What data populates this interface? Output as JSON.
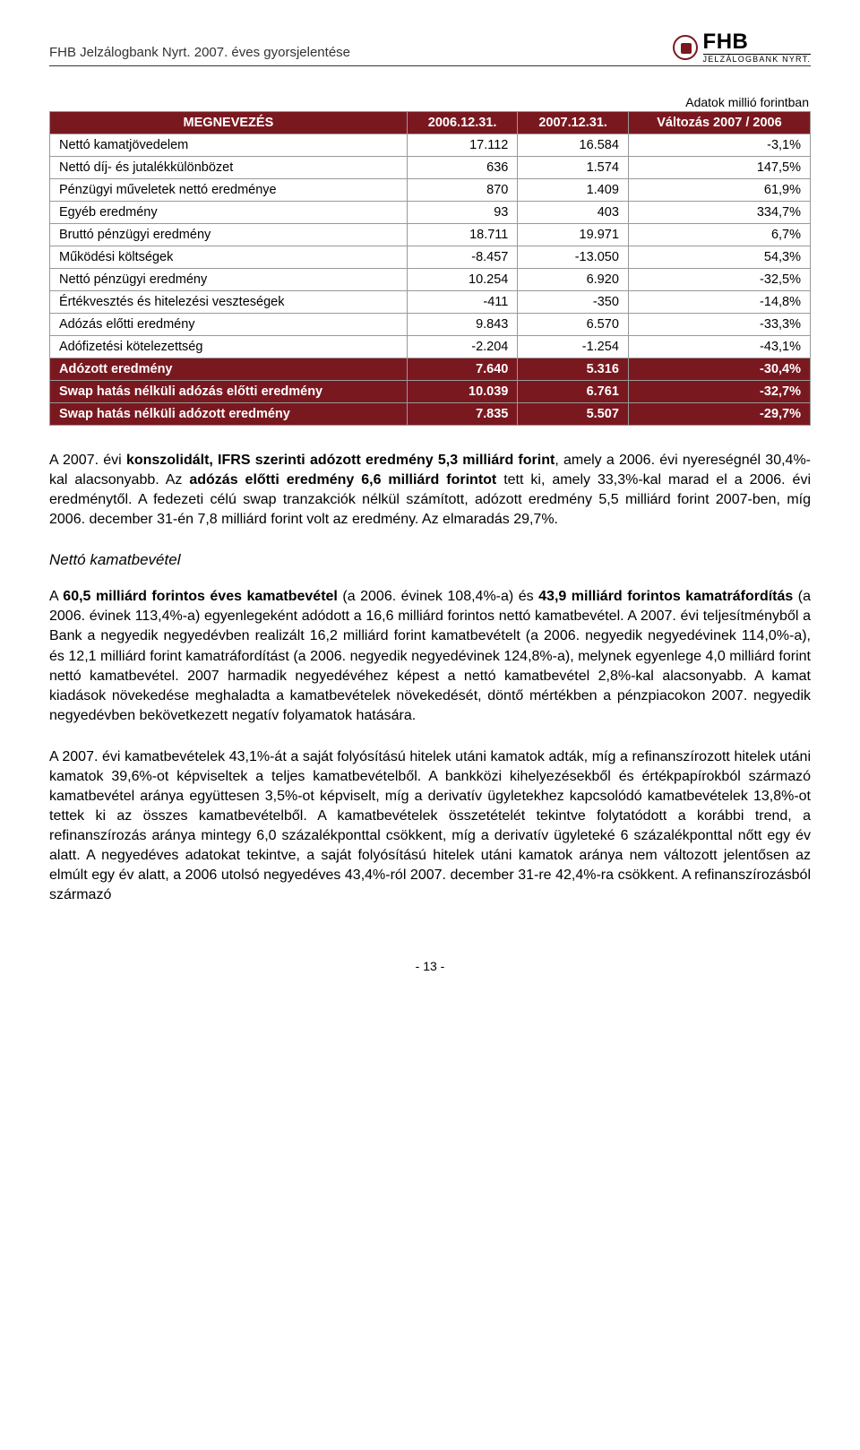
{
  "header": {
    "left_text": "FHB Jelzálogbank Nyrt. 2007. éves gyorsjelentése",
    "logo_big": "FHB",
    "logo_small": "JELZÁLOGBANK NYRT."
  },
  "table": {
    "caption": "Adatok millió forintban",
    "columns": [
      "MEGNEVEZÉS",
      "2006.12.31.",
      "2007.12.31.",
      "Változás 2007 / 2006"
    ],
    "rows": [
      {
        "label": "Nettó kamatjövedelem",
        "c1": "17.112",
        "c2": "16.584",
        "c3": "-3,1%",
        "hr": false
      },
      {
        "label": "Nettó díj- és jutalékkülönbözet",
        "c1": "636",
        "c2": "1.574",
        "c3": "147,5%",
        "hr": false
      },
      {
        "label": "Pénzügyi műveletek nettó eredménye",
        "c1": "870",
        "c2": "1.409",
        "c3": "61,9%",
        "hr": false
      },
      {
        "label": "Egyéb eredmény",
        "c1": "93",
        "c2": "403",
        "c3": "334,7%",
        "hr": false
      },
      {
        "label": "Bruttó pénzügyi eredmény",
        "c1": "18.711",
        "c2": "19.971",
        "c3": "6,7%",
        "hr": false
      },
      {
        "label": "Működési költségek",
        "c1": "-8.457",
        "c2": "-13.050",
        "c3": "54,3%",
        "hr": false
      },
      {
        "label": "Nettó pénzügyi eredmény",
        "c1": "10.254",
        "c2": "6.920",
        "c3": "-32,5%",
        "hr": false
      },
      {
        "label": "Értékvesztés és hitelezési veszteségek",
        "c1": "-411",
        "c2": "-350",
        "c3": "-14,8%",
        "hr": false
      },
      {
        "label": "Adózás előtti eredmény",
        "c1": "9.843",
        "c2": "6.570",
        "c3": "-33,3%",
        "hr": false
      },
      {
        "label": "Adófizetési kötelezettség",
        "c1": "-2.204",
        "c2": "-1.254",
        "c3": "-43,1%",
        "hr": false
      },
      {
        "label": "Adózott eredmény",
        "c1": "7.640",
        "c2": "5.316",
        "c3": "-30,4%",
        "hr": true
      },
      {
        "label": "Swap hatás nélküli adózás előtti eredmény",
        "c1": "10.039",
        "c2": "6.761",
        "c3": "-32,7%",
        "hr": true
      },
      {
        "label": "Swap hatás nélküli adózott eredmény",
        "c1": "7.835",
        "c2": "5.507",
        "c3": "-29,7%",
        "hr": true
      }
    ],
    "colors": {
      "header_bg": "#7a1820",
      "header_fg": "#ffffff",
      "border": "#999999"
    }
  },
  "paragraphs": {
    "p1_plain0": "A 2007. évi ",
    "p1_bold0": "konszolidált, IFRS szerinti adózott eredmény 5,3 milliárd forint",
    "p1_plain1": ", amely a 2006. évi nyereségnél 30,4%-kal alacsonyabb. Az ",
    "p1_bold1": "adózás előtti eredmény 6,6 milliárd forintot",
    "p1_plain2": " tett ki, amely 33,3%-kal marad el a 2006. évi eredménytől. A fedezeti célú swap tranzakciók nélkül számított, adózott eredmény 5,5 milliárd forint 2007-ben, míg 2006. december 31-én 7,8 milliárd forint volt az eredmény. Az elmaradás 29,7%.",
    "section_title": "Nettó kamatbevétel",
    "p2_plain0": "A ",
    "p2_bold0": "60,5 milliárd forintos éves kamatbevétel",
    "p2_plain1": " (a 2006. évinek 108,4%-a) és ",
    "p2_bold1": "43,9 milliárd forintos kamatráfordítás",
    "p2_plain2": " (a 2006. évinek 113,4%-a) egyenlegeként adódott a 16,6 milliárd forintos nettó kamatbevétel. A 2007. évi teljesítményből a Bank a negyedik negyedévben realizált 16,2 milliárd forint kamatbevételt (a 2006. negyedik negyedévinek 114,0%-a), és 12,1 milliárd forint kamatráfordítást (a 2006. negyedik negyedévinek 124,8%-a), melynek egyenlege 4,0 milliárd forint nettó kamatbevétel. 2007 harmadik negyedévéhez képest a nettó kamatbevétel 2,8%-kal alacsonyabb. A kamat kiadások növekedése meghaladta a kamatbevételek növekedését, döntő mértékben a pénzpiacokon 2007. negyedik negyedévben bekövetkezett negatív folyamatok hatására.",
    "p3": "A 2007. évi kamatbevételek 43,1%-át a saját folyósítású hitelek utáni kamatok adták, míg a refinanszírozott hitelek utáni kamatok 39,6%-ot képviseltek a teljes kamatbevételből. A bankközi kihelyezésekből és értékpapírokból származó kamatbevétel aránya együttesen 3,5%-ot képviselt, míg a derivatív ügyletekhez kapcsolódó kamatbevételek 13,8%-ot tettek ki az összes kamatbevételből. A kamatbevételek összetételét tekintve folytatódott a korábbi trend, a refinanszírozás aránya mintegy 6,0 százalékponttal csökkent, míg a derivatív ügyleteké 6 százalékponttal nőtt egy év alatt. A negyedéves adatokat tekintve, a saját folyósítású hitelek utáni kamatok aránya nem változott jelentősen az elmúlt egy év alatt, a 2006 utolsó negyedéves 43,4%-ról 2007. december 31-re 42,4%-ra csökkent. A refinanszírozásból származó"
  },
  "footer": {
    "page_number": "- 13 -"
  }
}
